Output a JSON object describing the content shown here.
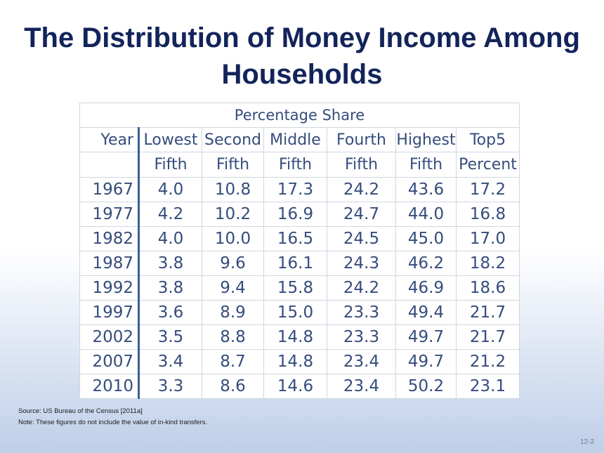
{
  "slide": {
    "title_line1": "The Distribution of Money Income Among",
    "title_line2": "Households",
    "source": "Source: US Bureau of the Census [2011a]",
    "note": "Note:  These figures do not include the value of in-kind transfers.",
    "page_number": "12-2"
  },
  "table": {
    "group_header": "Percentage Share",
    "header_row1": [
      "Year",
      "Lowest",
      "Second",
      "Middle",
      "Fourth",
      "Highest",
      "Top5"
    ],
    "header_row2": [
      "",
      "Fifth",
      "Fifth",
      "Fifth",
      "Fifth",
      "Fifth",
      "Percent"
    ],
    "rows": [
      [
        "1967",
        "4.0",
        "10.8",
        "17.3",
        "24.2",
        "43.6",
        "17.2"
      ],
      [
        "1977",
        "4.2",
        "10.2",
        "16.9",
        "24.7",
        "44.0",
        "16.8"
      ],
      [
        "1982",
        "4.0",
        "10.0",
        "16.5",
        "24.5",
        "45.0",
        "17.0"
      ],
      [
        "1987",
        "3.8",
        "9.6",
        "16.1",
        "24.3",
        "46.2",
        "18.2"
      ],
      [
        "1992",
        "3.8",
        "9.4",
        "15.8",
        "24.2",
        "46.9",
        "18.6"
      ],
      [
        "1997",
        "3.6",
        "8.9",
        "15.0",
        "23.3",
        "49.4",
        "21.7"
      ],
      [
        "2002",
        "3.5",
        "8.8",
        "14.8",
        "23.3",
        "49.7",
        "21.7"
      ],
      [
        "2007",
        "3.4",
        "8.7",
        "14.8",
        "23.4",
        "49.7",
        "21.2"
      ],
      [
        "2010",
        "3.3",
        "8.6",
        "14.6",
        "23.4",
        "50.2",
        "23.1"
      ]
    ]
  }
}
